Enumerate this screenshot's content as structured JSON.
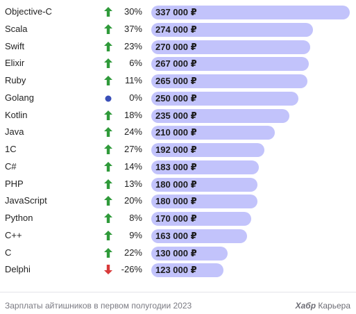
{
  "chart_data": {
    "type": "bar",
    "orientation": "horizontal",
    "categories": [
      "Objective-C",
      "Scala",
      "Swift",
      "Elixir",
      "Ruby",
      "Golang",
      "Kotlin",
      "Java",
      "1C",
      "C#",
      "PHP",
      "JavaScript",
      "Python",
      "C++",
      "C",
      "Delphi"
    ],
    "values": [
      337000,
      274000,
      270000,
      267000,
      265000,
      250000,
      235000,
      210000,
      192000,
      183000,
      180000,
      180000,
      170000,
      163000,
      130000,
      123000
    ],
    "value_labels": [
      "337 000 ₽",
      "274 000 ₽",
      "270 000 ₽",
      "267 000 ₽",
      "265 000 ₽",
      "250 000 ₽",
      "235 000 ₽",
      "210 000 ₽",
      "192 000 ₽",
      "183 000 ₽",
      "180 000 ₽",
      "180 000 ₽",
      "170 000 ₽",
      "163 000 ₽",
      "130 000 ₽",
      "123 000 ₽"
    ],
    "change_labels": [
      "30%",
      "37%",
      "23%",
      "6%",
      "11%",
      "0%",
      "18%",
      "24%",
      "27%",
      "14%",
      "13%",
      "20%",
      "8%",
      "9%",
      "22%",
      "-26%"
    ],
    "change_values": [
      30,
      37,
      23,
      6,
      11,
      0,
      18,
      24,
      27,
      14,
      13,
      20,
      8,
      9,
      22,
      -26
    ],
    "trend": [
      "up",
      "up",
      "up",
      "up",
      "up",
      "flat",
      "up",
      "up",
      "up",
      "up",
      "up",
      "up",
      "up",
      "up",
      "up",
      "down"
    ],
    "xlim": [
      0,
      337000
    ],
    "grid": false,
    "legend": "none"
  },
  "colors": {
    "bar": "#c2c3fb",
    "up": "#2f9a3a",
    "down": "#d83a3a",
    "flat": "#3a4fb8"
  },
  "icons": {
    "up": "arrow-up-icon",
    "down": "arrow-down-icon",
    "flat": "dot-icon"
  },
  "footer": {
    "caption": "Зарплаты айтишников в первом полугодии 2023",
    "brand_bold": "Хабр",
    "brand_rest": " Карьера"
  }
}
